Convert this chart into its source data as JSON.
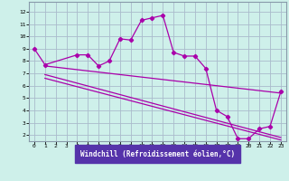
{
  "title": "",
  "xlabel": "Windchill (Refroidissement éolien,°C)",
  "background_color": "#cef0ea",
  "line_color": "#aa00aa",
  "grid_color": "#aabbcc",
  "x_ticks": [
    0,
    1,
    2,
    3,
    4,
    5,
    6,
    7,
    8,
    9,
    10,
    11,
    12,
    13,
    14,
    15,
    16,
    17,
    18,
    19,
    20,
    21,
    22,
    23
  ],
  "y_ticks": [
    2,
    3,
    4,
    5,
    6,
    7,
    8,
    9,
    10,
    11,
    12
  ],
  "ylim": [
    1.5,
    12.8
  ],
  "xlim": [
    -0.5,
    23.5
  ],
  "curve1_x": [
    0,
    1,
    4,
    5,
    6,
    7,
    8,
    9,
    10,
    11,
    12,
    13,
    14,
    15,
    16,
    17,
    18,
    19,
    20,
    21,
    22,
    23
  ],
  "curve1_y": [
    9,
    7.7,
    8.5,
    8.5,
    7.6,
    8.0,
    9.8,
    9.7,
    11.3,
    11.5,
    11.7,
    8.7,
    8.4,
    8.4,
    7.4,
    4.0,
    3.5,
    1.7,
    1.7,
    2.5,
    2.7,
    5.5
  ],
  "line1_x": [
    1,
    23
  ],
  "line1_y": [
    7.6,
    5.4
  ],
  "line2_x": [
    1,
    23
  ],
  "line2_y": [
    6.9,
    1.8
  ],
  "line3_x": [
    1,
    23
  ],
  "line3_y": [
    6.6,
    1.6
  ]
}
